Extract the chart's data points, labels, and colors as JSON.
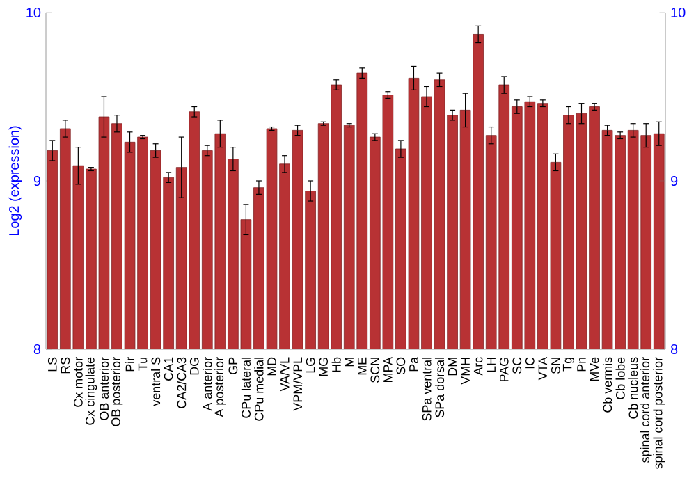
{
  "chart_data": {
    "type": "bar",
    "ylabel": "Log2 (expression)",
    "categories": [
      "LS",
      "RS",
      "Cx motor",
      "Cx cingulate",
      "OB anterior",
      "OB posterior",
      "Pir",
      "Tu",
      "ventral S",
      "CA1",
      "CA2/CA3",
      "DG",
      "A anterior",
      "A posterior",
      "GP",
      "CPu lateral",
      "CPu medial",
      "MD",
      "VA/VL",
      "VPM/VPL",
      "LG",
      "MG",
      "Hb",
      "M",
      "ME",
      "SCN",
      "MPA",
      "SO",
      "Pa",
      "SPa ventral",
      "SPa dorsal",
      "DM",
      "VMH",
      "Arc",
      "LH",
      "PAG",
      "SC",
      "IC",
      "VTA",
      "SN",
      "Tg",
      "Pn",
      "MVe",
      "Cb vermis",
      "Cb lobe",
      "Cb nucleus",
      "spinal cord anterior",
      "spinal cord posterior"
    ],
    "values": [
      9.18,
      9.31,
      9.09,
      9.07,
      9.38,
      9.34,
      9.23,
      9.26,
      9.18,
      9.02,
      9.08,
      9.41,
      9.18,
      9.28,
      9.13,
      8.77,
      8.96,
      9.31,
      9.1,
      9.3,
      8.94,
      9.34,
      9.57,
      9.33,
      9.64,
      9.26,
      9.51,
      9.19,
      9.61,
      9.5,
      9.6,
      9.39,
      9.42,
      9.87,
      9.27,
      9.57,
      9.44,
      9.47,
      9.46,
      9.11,
      9.39,
      9.4,
      9.44,
      9.3,
      9.27,
      9.3,
      9.27,
      9.28
    ],
    "errors": [
      0.06,
      0.05,
      0.11,
      0.01,
      0.12,
      0.05,
      0.06,
      0.01,
      0.04,
      0.03,
      0.18,
      0.03,
      0.03,
      0.08,
      0.07,
      0.09,
      0.04,
      0.01,
      0.05,
      0.03,
      0.06,
      0.01,
      0.03,
      0.01,
      0.03,
      0.02,
      0.02,
      0.05,
      0.07,
      0.06,
      0.04,
      0.03,
      0.1,
      0.05,
      0.05,
      0.05,
      0.04,
      0.03,
      0.02,
      0.05,
      0.05,
      0.06,
      0.02,
      0.03,
      0.02,
      0.04,
      0.07,
      0.07
    ],
    "color": "#b83234",
    "ylim": [
      8,
      10
    ],
    "yticks": [
      8,
      9,
      10
    ],
    "y2lim": [
      8,
      10
    ],
    "y2ticks": [
      8,
      9,
      10
    ]
  }
}
